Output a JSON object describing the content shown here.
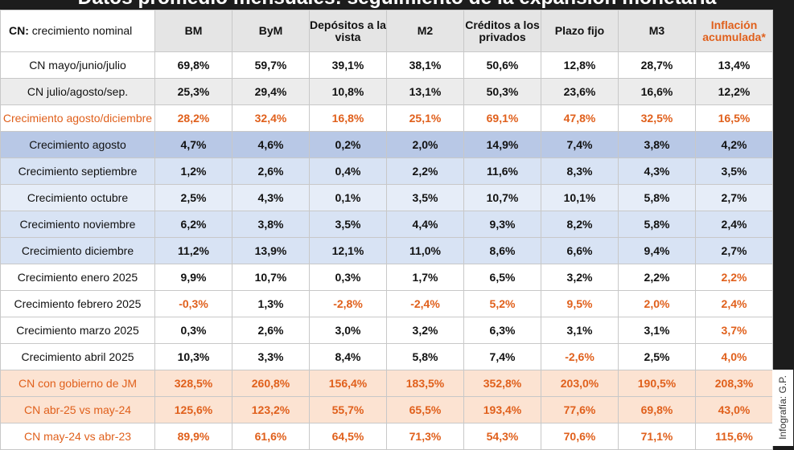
{
  "title": "Datos promedio mensuales: seguimiento de la expansión monetaria",
  "credit": "Infografía: G.P.",
  "header": {
    "label_bold": "CN:",
    "label_rest": " crecimiento nominal",
    "columns": [
      "BM",
      "ByM",
      "Depósitos a la vista",
      "M2",
      "Créditos a los privados",
      "Plazo fijo",
      "M3",
      "Inflación acumulada*"
    ]
  },
  "rows": [
    {
      "label": "CN mayo/junio/julio",
      "values": [
        "69,8%",
        "59,7%",
        "39,1%",
        "38,1%",
        "50,6%",
        "12,8%",
        "28,7%",
        "13,4%"
      ]
    },
    {
      "label": "CN julio/agosto/sep.",
      "values": [
        "25,3%",
        "29,4%",
        "10,8%",
        "13,1%",
        "50,3%",
        "23,6%",
        "16,6%",
        "12,2%"
      ]
    },
    {
      "label": "Crecimiento agosto/diciembre",
      "values": [
        "28,2%",
        "32,4%",
        "16,8%",
        "25,1%",
        "69,1%",
        "47,8%",
        "32,5%",
        "16,5%"
      ]
    },
    {
      "label": "Crecimiento agosto",
      "values": [
        "4,7%",
        "4,6%",
        "0,2%",
        "2,0%",
        "14,9%",
        "7,4%",
        "3,8%",
        "4,2%"
      ]
    },
    {
      "label": "Crecimiento septiembre",
      "values": [
        "1,2%",
        "2,6%",
        "0,4%",
        "2,2%",
        "11,6%",
        "8,3%",
        "4,3%",
        "3,5%"
      ]
    },
    {
      "label": "Crecimiento octubre",
      "values": [
        "2,5%",
        "4,3%",
        "0,1%",
        "3,5%",
        "10,7%",
        "10,1%",
        "5,8%",
        "2,7%"
      ]
    },
    {
      "label": "Crecimiento noviembre",
      "values": [
        "6,2%",
        "3,8%",
        "3,5%",
        "4,4%",
        "9,3%",
        "8,2%",
        "5,8%",
        "2,4%"
      ]
    },
    {
      "label": "Crecimiento diciembre",
      "values": [
        "11,2%",
        "13,9%",
        "12,1%",
        "11,0%",
        "8,6%",
        "6,6%",
        "9,4%",
        "2,7%"
      ]
    },
    {
      "label": "Crecimiento enero 2025",
      "values": [
        "9,9%",
        "10,7%",
        "0,3%",
        "1,7%",
        "6,5%",
        "3,2%",
        "2,2%",
        "2,2%"
      ]
    },
    {
      "label": "Crecimiento febrero 2025",
      "values": [
        "-0,3%",
        "1,3%",
        "-2,8%",
        "-2,4%",
        "5,2%",
        "9,5%",
        "2,0%",
        "2,4%"
      ]
    },
    {
      "label": "Crecimiento marzo 2025",
      "values": [
        "0,3%",
        "2,6%",
        "3,0%",
        "3,2%",
        "6,3%",
        "3,1%",
        "3,1%",
        "3,7%"
      ]
    },
    {
      "label": "Crecimiento abril 2025",
      "values": [
        "10,3%",
        "3,3%",
        "8,4%",
        "5,8%",
        "7,4%",
        "-2,6%",
        "2,5%",
        "4,0%"
      ]
    },
    {
      "label": "CN con gobierno de JM",
      "values": [
        "328,5%",
        "260,8%",
        "156,4%",
        "183,5%",
        "352,8%",
        "203,0%",
        "190,5%",
        "208,3%"
      ]
    },
    {
      "label": "CN abr-25 vs may-24",
      "values": [
        "125,6%",
        "123,2%",
        "55,7%",
        "65,5%",
        "193,4%",
        "77,6%",
        "69,8%",
        "43,0%"
      ]
    },
    {
      "label": "CN may-24 vs abr-23",
      "values": [
        "89,9%",
        "61,6%",
        "64,5%",
        "71,3%",
        "54,3%",
        "70,6%",
        "71,1%",
        "115,6%"
      ]
    }
  ],
  "colors": {
    "accent_orange": "#e0601c",
    "blue_highlight": "#b8c8e6",
    "blue_row": "#d8e3f4",
    "peach_row": "#fce3d2",
    "header_grey": "#e5e5e5",
    "title_bar": "#1c1c1c"
  }
}
